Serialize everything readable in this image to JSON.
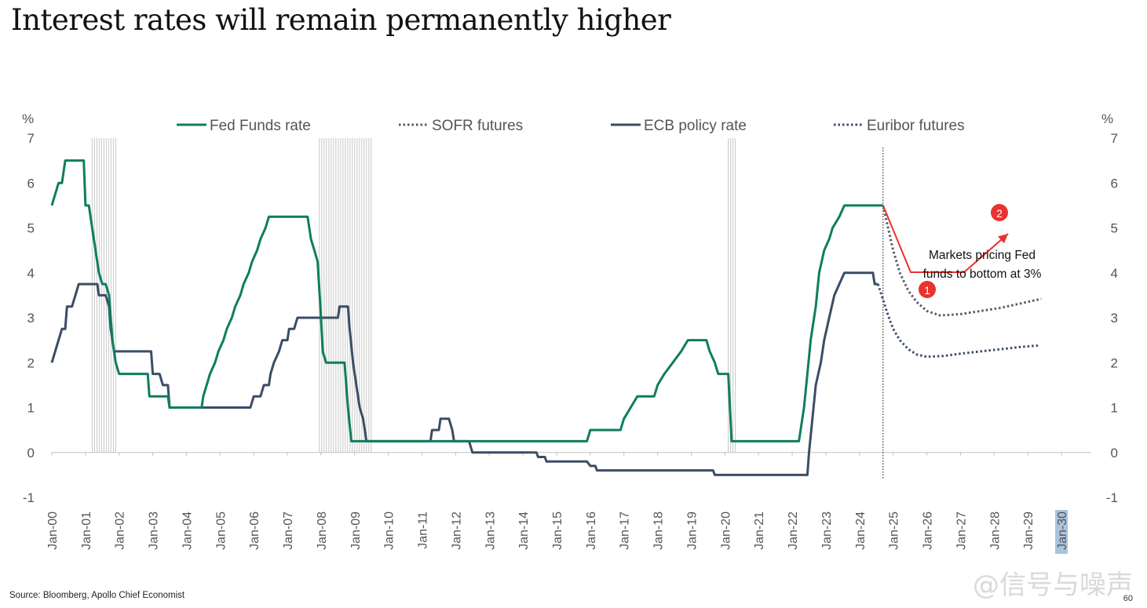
{
  "title": "Interest rates will remain permanently higher",
  "source": "Source: Bloomberg, Apollo Chief Economist",
  "page_number": "60",
  "watermark": "@信号与噪声",
  "annotation": {
    "text_line1": "Markets pricing Fed",
    "text_line2": "funds to bottom at 3%",
    "marker1": "1",
    "marker2": "2",
    "marker_color": "#e8332f"
  },
  "chart_data": {
    "type": "line",
    "left_axis_unit": "%",
    "right_axis_unit": "%",
    "ylim": [
      -1,
      7
    ],
    "yticks": [
      -1,
      0,
      1,
      2,
      3,
      4,
      5,
      6,
      7
    ],
    "xlim": [
      2000.0,
      2030.0
    ],
    "xtick_labels": [
      "Jan-00",
      "Jan-01",
      "Jan-02",
      "Jan-03",
      "Jan-04",
      "Jan-05",
      "Jan-06",
      "Jan-07",
      "Jan-08",
      "Jan-09",
      "Jan-10",
      "Jan-11",
      "Jan-12",
      "Jan-13",
      "Jan-14",
      "Jan-15",
      "Jan-16",
      "Jan-17",
      "Jan-18",
      "Jan-19",
      "Jan-20",
      "Jan-21",
      "Jan-22",
      "Jan-23",
      "Jan-24",
      "Jan-25",
      "Jan-26",
      "Jan-27",
      "Jan-28",
      "Jan-29",
      "Jan-30"
    ],
    "highlighted_tick": "Jan-30",
    "vertical_line_x": 2024.7,
    "recession_bands": [
      [
        2001.2,
        2001.9
      ],
      [
        2007.95,
        2009.5
      ],
      [
        2020.1,
        2020.35
      ]
    ],
    "legend_position": "top",
    "colors": {
      "fed": "#0f7d5f",
      "ecb": "#3b4d66",
      "sofr": "#555b66",
      "euribor": "#3b4d66",
      "recession": "#d0d0d0",
      "axis": "#bfbfbf"
    },
    "series": [
      {
        "name": "Fed Funds rate",
        "style": "solid",
        "points": [
          [
            2000.0,
            5.5
          ],
          [
            2000.1,
            5.75
          ],
          [
            2000.2,
            6.0
          ],
          [
            2000.3,
            6.0
          ],
          [
            2000.4,
            6.5
          ],
          [
            2000.95,
            6.5
          ],
          [
            2001.0,
            5.5
          ],
          [
            2001.1,
            5.5
          ],
          [
            2001.2,
            5.0
          ],
          [
            2001.3,
            4.5
          ],
          [
            2001.4,
            4.0
          ],
          [
            2001.5,
            3.75
          ],
          [
            2001.6,
            3.75
          ],
          [
            2001.7,
            3.5
          ],
          [
            2001.75,
            3.0
          ],
          [
            2001.8,
            2.5
          ],
          [
            2001.9,
            2.0
          ],
          [
            2002.0,
            1.75
          ],
          [
            2002.85,
            1.75
          ],
          [
            2002.9,
            1.25
          ],
          [
            2003.45,
            1.25
          ],
          [
            2003.5,
            1.0
          ],
          [
            2004.45,
            1.0
          ],
          [
            2004.5,
            1.25
          ],
          [
            2004.6,
            1.5
          ],
          [
            2004.7,
            1.75
          ],
          [
            2004.85,
            2.0
          ],
          [
            2004.95,
            2.25
          ],
          [
            2005.1,
            2.5
          ],
          [
            2005.2,
            2.75
          ],
          [
            2005.35,
            3.0
          ],
          [
            2005.45,
            3.25
          ],
          [
            2005.6,
            3.5
          ],
          [
            2005.7,
            3.75
          ],
          [
            2005.85,
            4.0
          ],
          [
            2005.95,
            4.25
          ],
          [
            2006.1,
            4.5
          ],
          [
            2006.2,
            4.75
          ],
          [
            2006.35,
            5.0
          ],
          [
            2006.45,
            5.25
          ],
          [
            2007.6,
            5.25
          ],
          [
            2007.7,
            4.75
          ],
          [
            2007.8,
            4.5
          ],
          [
            2007.9,
            4.25
          ],
          [
            2008.0,
            3.0
          ],
          [
            2008.05,
            2.25
          ],
          [
            2008.15,
            2.0
          ],
          [
            2008.7,
            2.0
          ],
          [
            2008.8,
            1.0
          ],
          [
            2008.9,
            0.25
          ],
          [
            2015.9,
            0.25
          ],
          [
            2016.0,
            0.5
          ],
          [
            2016.9,
            0.5
          ],
          [
            2017.0,
            0.75
          ],
          [
            2017.2,
            1.0
          ],
          [
            2017.4,
            1.25
          ],
          [
            2017.9,
            1.25
          ],
          [
            2018.0,
            1.5
          ],
          [
            2018.2,
            1.75
          ],
          [
            2018.45,
            2.0
          ],
          [
            2018.7,
            2.25
          ],
          [
            2018.9,
            2.5
          ],
          [
            2019.45,
            2.5
          ],
          [
            2019.55,
            2.25
          ],
          [
            2019.7,
            2.0
          ],
          [
            2019.8,
            1.75
          ],
          [
            2020.1,
            1.75
          ],
          [
            2020.15,
            1.0
          ],
          [
            2020.2,
            0.25
          ],
          [
            2022.2,
            0.25
          ],
          [
            2022.25,
            0.5
          ],
          [
            2022.35,
            1.0
          ],
          [
            2022.45,
            1.75
          ],
          [
            2022.55,
            2.5
          ],
          [
            2022.7,
            3.25
          ],
          [
            2022.8,
            4.0
          ],
          [
            2022.95,
            4.5
          ],
          [
            2023.1,
            4.75
          ],
          [
            2023.2,
            5.0
          ],
          [
            2023.4,
            5.25
          ],
          [
            2023.55,
            5.5
          ],
          [
            2024.7,
            5.5
          ]
        ]
      },
      {
        "name": "SOFR futures",
        "style": "dotted",
        "points": [
          [
            2024.7,
            5.5
          ],
          [
            2024.85,
            5.0
          ],
          [
            2025.0,
            4.5
          ],
          [
            2025.2,
            4.0
          ],
          [
            2025.45,
            3.6
          ],
          [
            2025.7,
            3.35
          ],
          [
            2026.0,
            3.15
          ],
          [
            2026.4,
            3.05
          ],
          [
            2027.0,
            3.08
          ],
          [
            2027.6,
            3.15
          ],
          [
            2028.2,
            3.22
          ],
          [
            2028.8,
            3.32
          ],
          [
            2029.4,
            3.42
          ]
        ]
      },
      {
        "name": "ECB policy rate",
        "style": "solid",
        "points": [
          [
            2000.0,
            2.0
          ],
          [
            2000.1,
            2.25
          ],
          [
            2000.2,
            2.5
          ],
          [
            2000.3,
            2.75
          ],
          [
            2000.4,
            2.75
          ],
          [
            2000.45,
            3.25
          ],
          [
            2000.6,
            3.25
          ],
          [
            2000.7,
            3.5
          ],
          [
            2000.8,
            3.75
          ],
          [
            2001.35,
            3.75
          ],
          [
            2001.4,
            3.5
          ],
          [
            2001.6,
            3.5
          ],
          [
            2001.7,
            3.25
          ],
          [
            2001.75,
            2.75
          ],
          [
            2001.85,
            2.25
          ],
          [
            2002.95,
            2.25
          ],
          [
            2003.0,
            1.75
          ],
          [
            2003.2,
            1.75
          ],
          [
            2003.3,
            1.5
          ],
          [
            2003.45,
            1.5
          ],
          [
            2003.5,
            1.0
          ],
          [
            2005.9,
            1.0
          ],
          [
            2006.0,
            1.25
          ],
          [
            2006.2,
            1.25
          ],
          [
            2006.3,
            1.5
          ],
          [
            2006.45,
            1.5
          ],
          [
            2006.5,
            1.75
          ],
          [
            2006.6,
            2.0
          ],
          [
            2006.75,
            2.25
          ],
          [
            2006.85,
            2.5
          ],
          [
            2007.0,
            2.5
          ],
          [
            2007.05,
            2.75
          ],
          [
            2007.2,
            2.75
          ],
          [
            2007.3,
            3.0
          ],
          [
            2008.5,
            3.0
          ],
          [
            2008.55,
            3.25
          ],
          [
            2008.8,
            3.25
          ],
          [
            2008.85,
            2.75
          ],
          [
            2008.95,
            2.0
          ],
          [
            2009.05,
            1.5
          ],
          [
            2009.15,
            1.0
          ],
          [
            2009.25,
            0.75
          ],
          [
            2009.35,
            0.25
          ],
          [
            2011.25,
            0.25
          ],
          [
            2011.3,
            0.5
          ],
          [
            2011.5,
            0.5
          ],
          [
            2011.55,
            0.75
          ],
          [
            2011.8,
            0.75
          ],
          [
            2011.9,
            0.5
          ],
          [
            2011.95,
            0.25
          ],
          [
            2012.4,
            0.25
          ],
          [
            2012.5,
            0.0
          ],
          [
            2014.4,
            0.0
          ],
          [
            2014.45,
            -0.1
          ],
          [
            2014.65,
            -0.1
          ],
          [
            2014.7,
            -0.2
          ],
          [
            2015.9,
            -0.2
          ],
          [
            2016.0,
            -0.3
          ],
          [
            2016.15,
            -0.3
          ],
          [
            2016.2,
            -0.4
          ],
          [
            2019.65,
            -0.4
          ],
          [
            2019.7,
            -0.5
          ],
          [
            2022.45,
            -0.5
          ],
          [
            2022.5,
            0.0
          ],
          [
            2022.6,
            0.75
          ],
          [
            2022.7,
            1.5
          ],
          [
            2022.85,
            2.0
          ],
          [
            2022.95,
            2.5
          ],
          [
            2023.1,
            3.0
          ],
          [
            2023.25,
            3.5
          ],
          [
            2023.4,
            3.75
          ],
          [
            2023.55,
            4.0
          ],
          [
            2024.4,
            4.0
          ],
          [
            2024.45,
            3.75
          ],
          [
            2024.55,
            3.75
          ]
        ]
      },
      {
        "name": "Euribor futures",
        "style": "dotted",
        "points": [
          [
            2024.55,
            3.75
          ],
          [
            2024.7,
            3.4
          ],
          [
            2024.85,
            3.05
          ],
          [
            2025.0,
            2.75
          ],
          [
            2025.2,
            2.5
          ],
          [
            2025.45,
            2.3
          ],
          [
            2025.7,
            2.18
          ],
          [
            2026.0,
            2.13
          ],
          [
            2026.5,
            2.15
          ],
          [
            2027.0,
            2.2
          ],
          [
            2027.6,
            2.25
          ],
          [
            2028.2,
            2.3
          ],
          [
            2028.8,
            2.35
          ],
          [
            2029.3,
            2.38
          ]
        ]
      }
    ]
  }
}
